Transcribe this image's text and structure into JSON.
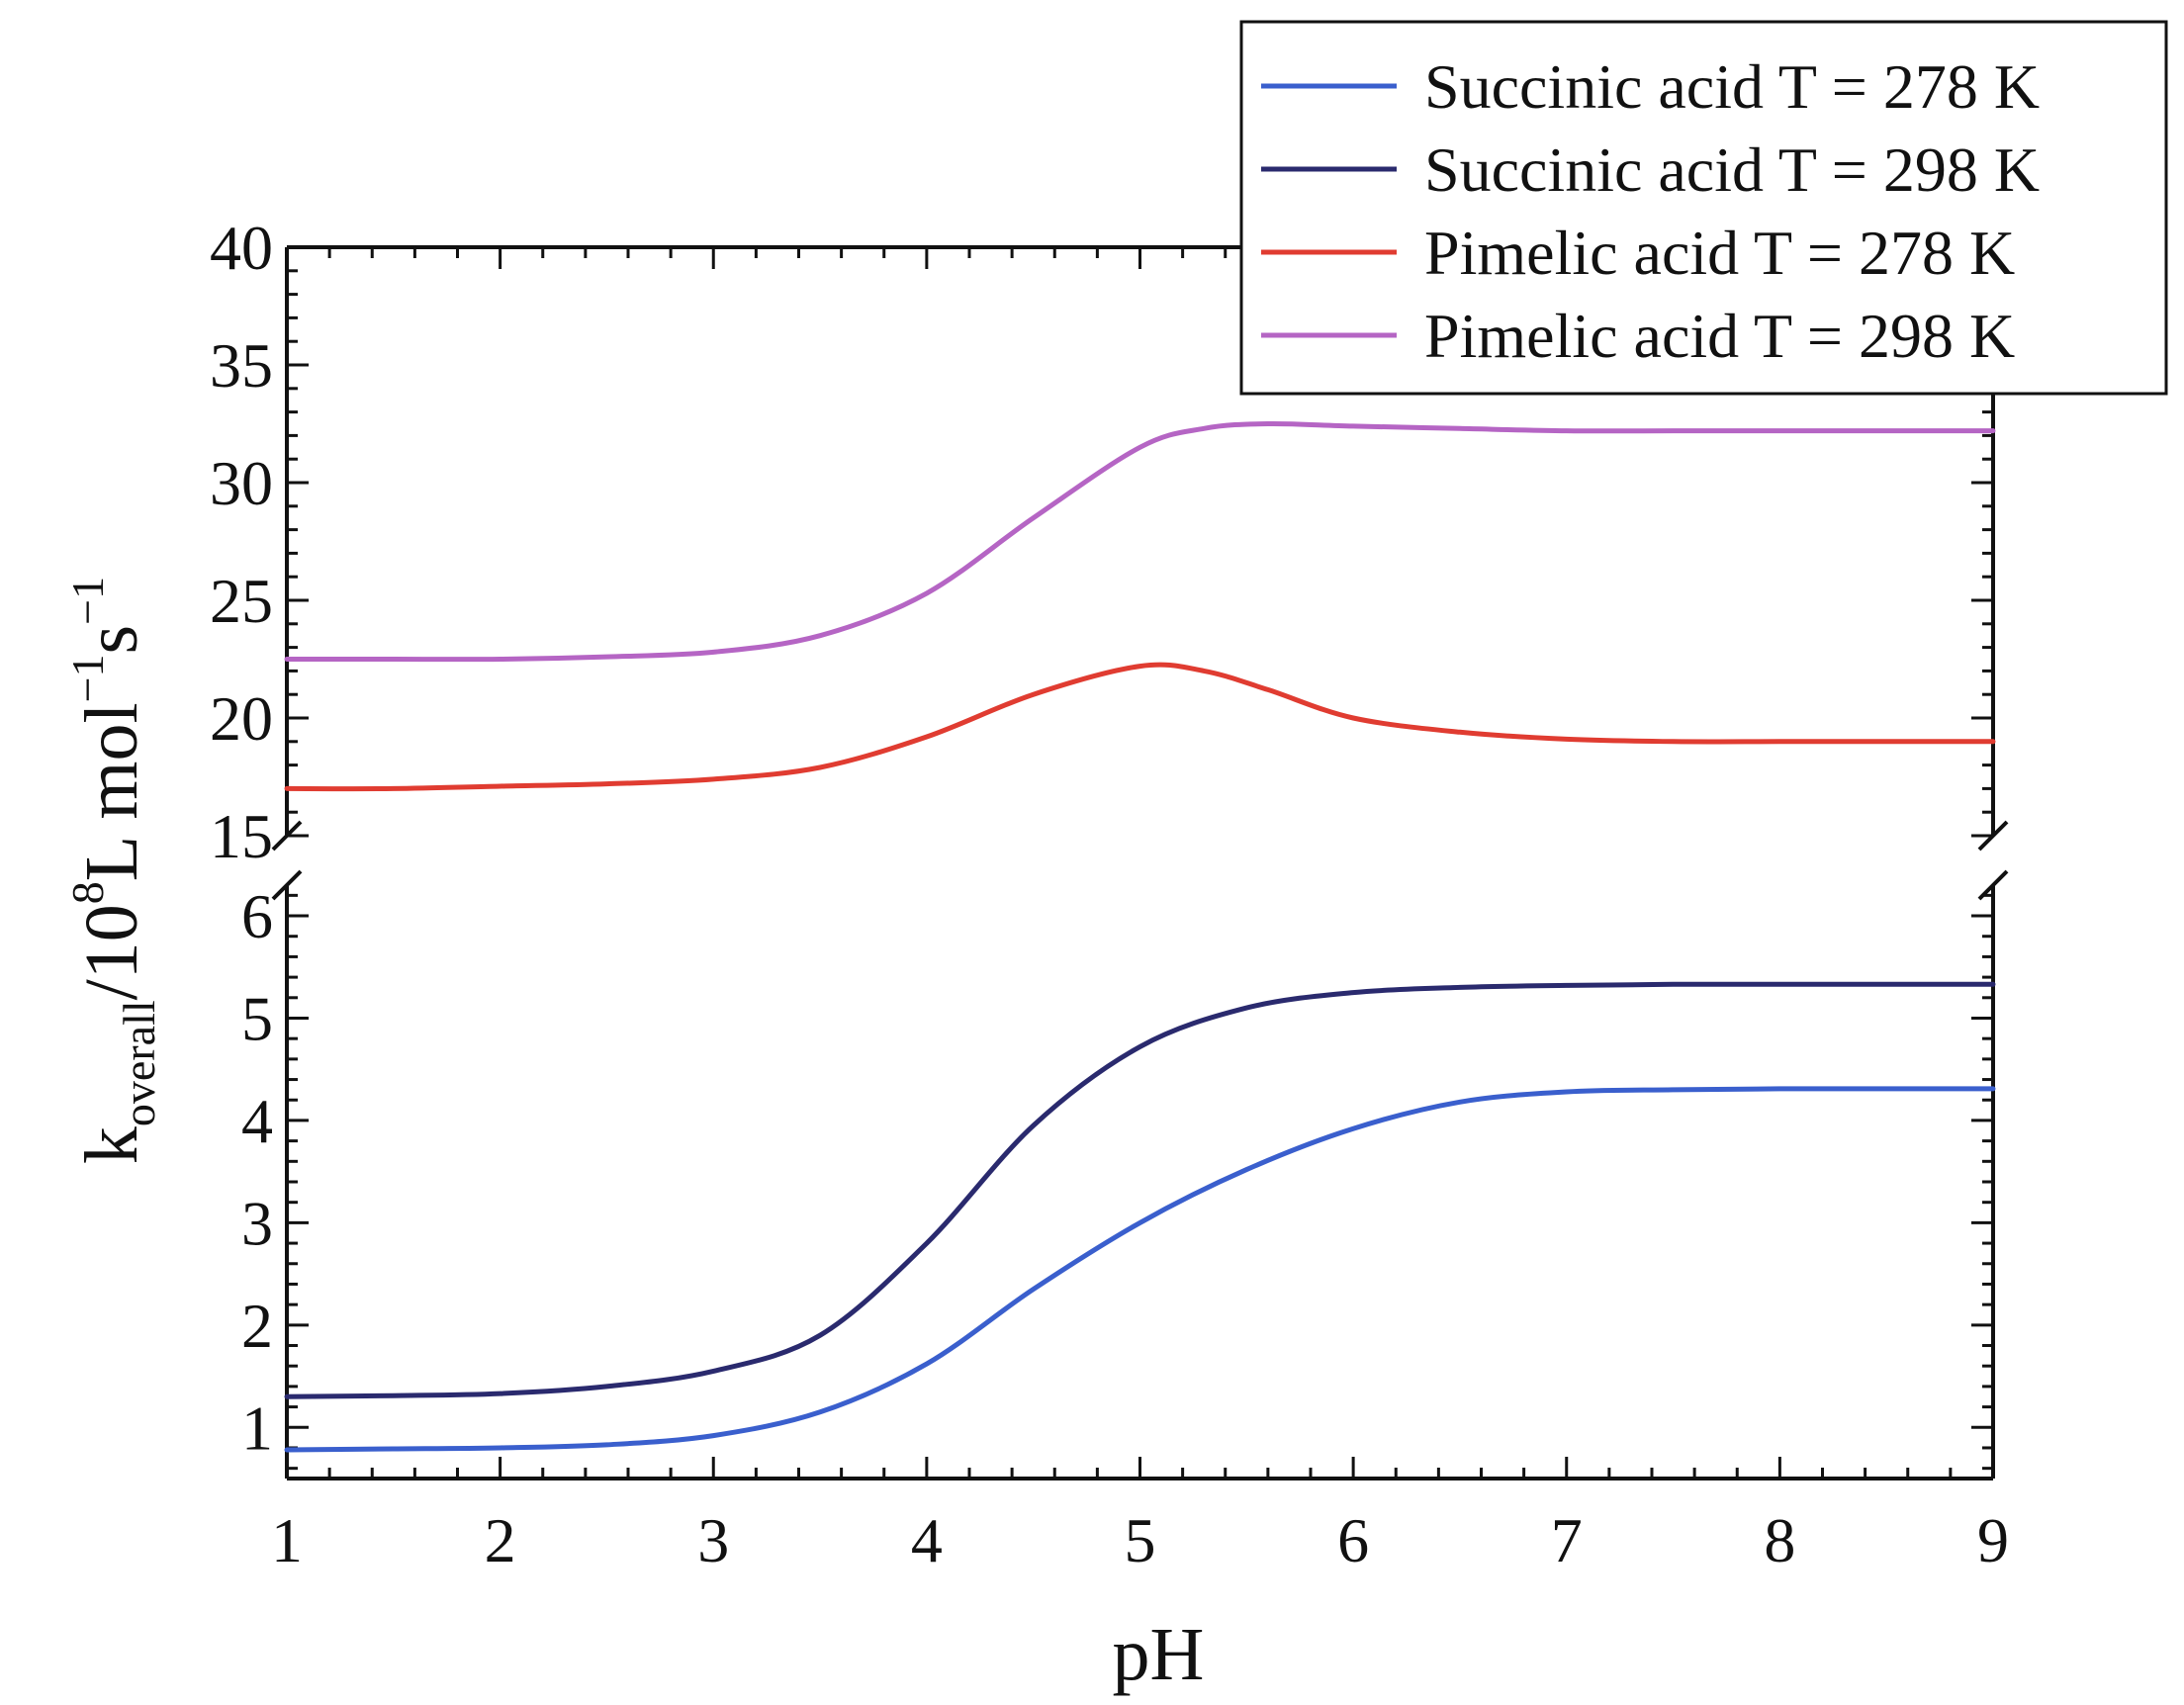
{
  "chart_data": {
    "type": "line",
    "title": "",
    "xlabel": "pH",
    "ylabel": {
      "main": "k",
      "sub": "overall",
      "unit_prefix": "/10",
      "exp": "8",
      "unit_mid": "L mol",
      "exp2": "−1",
      "unit_end": "s",
      "exp3": "−1"
    },
    "xlim": [
      1,
      9
    ],
    "xticks": [
      1,
      2,
      3,
      4,
      5,
      6,
      7,
      8,
      9
    ],
    "broken_y_axis": true,
    "lower_panel": {
      "ylim": [
        0.5,
        6.3
      ],
      "yticks": [
        1,
        2,
        3,
        4,
        5,
        6
      ]
    },
    "upper_panel": {
      "ylim": [
        15,
        40
      ],
      "yticks": [
        15,
        20,
        25,
        30,
        35,
        40
      ]
    },
    "legend_position": "top-right",
    "series": [
      {
        "name": "Succinic acid T = 278 K",
        "color": "#3a5fcd",
        "panel": "lower",
        "x": [
          1,
          1.5,
          2,
          2.5,
          3,
          3.5,
          4,
          4.5,
          5,
          5.5,
          6,
          6.5,
          7,
          7.5,
          8,
          8.5,
          9
        ],
        "y": [
          0.78,
          0.79,
          0.8,
          0.83,
          0.92,
          1.15,
          1.62,
          2.35,
          3.0,
          3.52,
          3.92,
          4.18,
          4.28,
          4.3,
          4.31,
          4.31,
          4.31
        ]
      },
      {
        "name": "Succinic acid T = 298 K",
        "color": "#2a2a6e",
        "panel": "lower",
        "x": [
          1,
          1.5,
          2,
          2.5,
          3,
          3.5,
          4,
          4.5,
          5,
          5.5,
          6,
          6.5,
          7,
          7.5,
          8,
          8.5,
          9
        ],
        "y": [
          1.3,
          1.31,
          1.33,
          1.4,
          1.55,
          1.9,
          2.8,
          3.95,
          4.72,
          5.1,
          5.25,
          5.3,
          5.32,
          5.33,
          5.33,
          5.33,
          5.33
        ]
      },
      {
        "name": "Pimelic acid T = 278 K",
        "color": "#e03c31",
        "panel": "upper",
        "x": [
          1,
          1.5,
          2,
          2.5,
          3,
          3.5,
          4,
          4.5,
          5,
          5.3,
          5.6,
          6,
          6.5,
          7,
          7.5,
          8,
          8.5,
          9
        ],
        "y": [
          17.0,
          17.0,
          17.1,
          17.2,
          17.4,
          17.9,
          19.2,
          21.0,
          22.2,
          22.0,
          21.2,
          20.0,
          19.4,
          19.1,
          19.0,
          19.0,
          19.0,
          19.0
        ]
      },
      {
        "name": "Pimelic acid T = 298 K",
        "color": "#b565c4",
        "panel": "upper",
        "x": [
          1,
          1.5,
          2,
          2.5,
          3,
          3.5,
          4,
          4.5,
          5,
          5.3,
          5.6,
          6,
          6.5,
          7,
          7.5,
          8,
          8.5,
          9
        ],
        "y": [
          22.5,
          22.5,
          22.5,
          22.6,
          22.8,
          23.5,
          25.3,
          28.5,
          31.5,
          32.3,
          32.5,
          32.4,
          32.3,
          32.2,
          32.2,
          32.2,
          32.2,
          32.2
        ]
      }
    ]
  }
}
